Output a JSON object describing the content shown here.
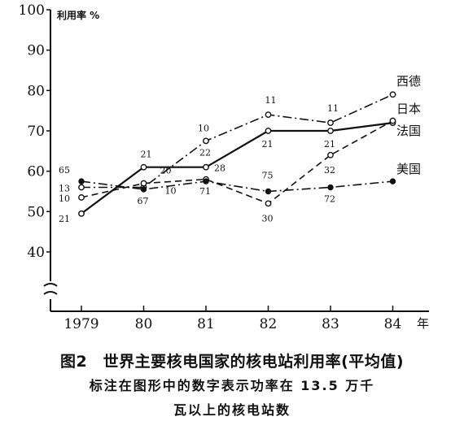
{
  "chart_data": {
    "type": "line",
    "ylabel": "利用率 %",
    "xlabel": "年",
    "categories": [
      "1979",
      "80",
      "81",
      "82",
      "83",
      "84"
    ],
    "yticks": [
      "100",
      "90",
      "80",
      "70",
      "60",
      "50",
      "40"
    ],
    "ylim": [
      40,
      100
    ],
    "y_axis_break": true,
    "grid": false,
    "series": [
      {
        "name": "西德",
        "line_style": "dash-dot",
        "marker": "open-circle",
        "values": [
          56,
          56,
          67.5,
          74,
          72,
          79
        ],
        "point_labels": [
          "13",
          "",
          "10",
          "11",
          "11",
          ""
        ]
      },
      {
        "name": "日本",
        "line_style": "solid",
        "marker": "open-circle",
        "values": [
          49.5,
          61,
          61,
          70,
          70,
          72
        ],
        "point_labels": [
          "21",
          "21",
          "22",
          "21",
          "21",
          ""
        ]
      },
      {
        "name": "法国",
        "line_style": "dashed",
        "marker": "open-circle",
        "values": [
          53.5,
          57,
          58,
          52,
          64,
          72.5
        ],
        "point_labels": [
          "10",
          "20",
          "28",
          "30",
          "32",
          ""
        ]
      },
      {
        "name": "美国",
        "line_style": "dash-dot",
        "marker": "filled-circle",
        "values": [
          57.5,
          55.5,
          57.5,
          55,
          56,
          57.5
        ],
        "point_labels": [
          "65",
          "67",
          "71",
          "75",
          "72",
          ""
        ]
      }
    ],
    "annotations": [
      "10"
    ]
  },
  "caption": {
    "title": "图2　世界主要核电国家的核电站利用率(平均值)",
    "line2": "标注在图形中的数字表示功率在 13.5 万千",
    "line3": "瓦以上的核电站数"
  }
}
